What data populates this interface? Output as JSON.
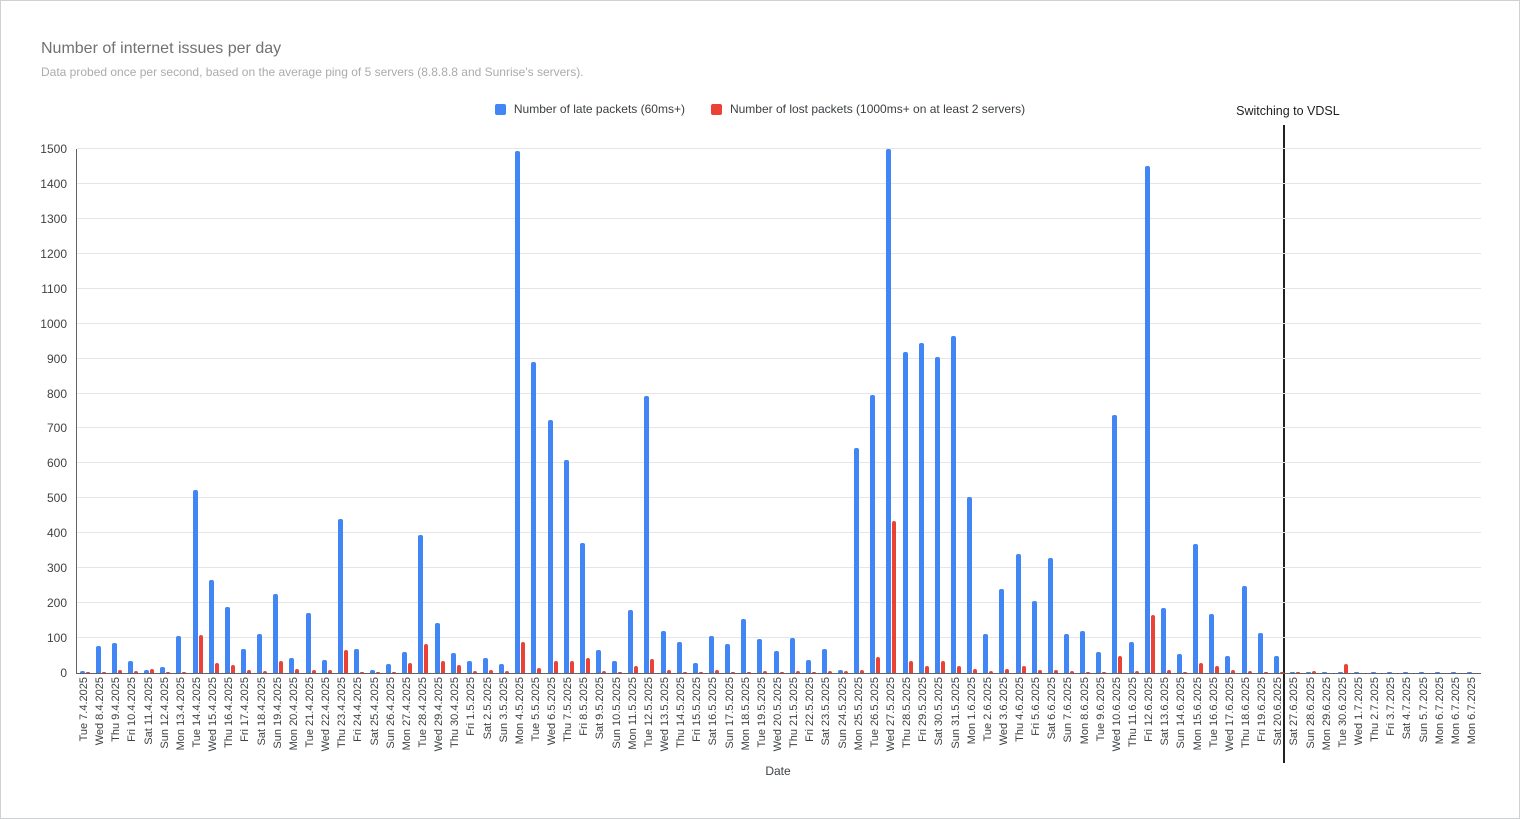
{
  "header": {
    "title": "Number of internet issues per day",
    "subtitle": "Data probed once per second, based on the average ping of 5 servers (8.8.8.8 and Sunrise's servers)."
  },
  "annotation": {
    "label": "Switching to VDSL",
    "between": [
      "Sat 20.6.2025",
      "Sat 27.6.2025"
    ],
    "at_index": 74.85
  },
  "colors": {
    "late_packets": "#4285f4",
    "lost_packets": "#ea4335",
    "gridline": "#e6e6e6",
    "axis": "#5f6368",
    "annotation_line": "#212121"
  },
  "chart_data": {
    "type": "bar",
    "title": "Number of internet issues per day",
    "xlabel": "Date",
    "ylabel": "",
    "ylim": [
      0,
      1500
    ],
    "yticks": [
      0,
      100,
      200,
      300,
      400,
      500,
      600,
      700,
      800,
      900,
      1000,
      1100,
      1200,
      1300,
      1400,
      1500
    ],
    "grid": true,
    "legend_position": "top-center",
    "categories": [
      "Tue 7.4.2025",
      "Wed 8.4.2025",
      "Thu 9.4.2025",
      "Fri 10.4.2025",
      "Sat 11.4.2025",
      "Sun 12.4.2025",
      "Mon 13.4.2025",
      "Tue 14.4.2025",
      "Wed 15.4.2025",
      "Thu 16.4.2025",
      "Fri 17.4.2025",
      "Sat 18.4.2025",
      "Sun 19.4.2025",
      "Mon 20.4.2025",
      "Tue 21.4.2025",
      "Wed 22.4.2025",
      "Thu 23.4.2025",
      "Fri 24.4.2025",
      "Sat 25.4.2025",
      "Sun 26.4.2025",
      "Mon 27.4.2025",
      "Tue 28.4.2025",
      "Wed 29.4.2025",
      "Thu 30.4.2025",
      "Fri 1.5.2025",
      "Sat 2.5.2025",
      "Sun 3.5.2025",
      "Mon 4.5.2025",
      "Tue 5.5.2025",
      "Wed 6.5.2025",
      "Thu 7.5.2025",
      "Fri 8.5.2025",
      "Sat 9.5.2025",
      "Sun 10.5.2025",
      "Mon 11.5.2025",
      "Tue 12.5.2025",
      "Wed 13.5.2025",
      "Thu 14.5.2025",
      "Fri 15.5.2025",
      "Sat 16.5.2025",
      "Sun 17.5.2025",
      "Mon 18.5.2025",
      "Tue 19.5.2025",
      "Wed 20.5.2025",
      "Thu 21.5.2025",
      "Fri 22.5.2025",
      "Sat 23.5.2025",
      "Sun 24.5.2025",
      "Mon 25.5.2025",
      "Tue 26.5.2025",
      "Wed 27.5.2025",
      "Thu 28.5.2025",
      "Fri 29.5.2025",
      "Sat 30.5.2025",
      "Sun 31.5.2025",
      "Mon 1.6.2025",
      "Tue 2.6.2025",
      "Wed 3.6.2025",
      "Thu 4.6.2025",
      "Fri 5.6.2025",
      "Sat 6.6.2025",
      "Sun 7.6.2025",
      "Mon 8.6.2025",
      "Tue 9.6.2025",
      "Wed 10.6.2025",
      "Thu 11.6.2025",
      "Fri 12.6.2025",
      "Sat 13.6.2025",
      "Sun 14.6.2025",
      "Mon 15.6.2025",
      "Tue 16.6.2025",
      "Wed 17.6.2025",
      "Thu 18.6.2025",
      "Fri 19.6.2025",
      "Sat 20.6.2025",
      "Sat 27.6.2025",
      "Sun 28.6.2025",
      "Mon 29.6.2025",
      "Tue 30.6.2025",
      "Wed 1.7.2025",
      "Thu 2.7.2025",
      "Fri 3.7.2025",
      "Sat 4.7.2025",
      "Sun 5.7.2025",
      "Mon 6.7.2025",
      "Mon 6.7.2025",
      "Mon 6.7.2025"
    ],
    "series": [
      {
        "name": "Number of late packets (60ms+)",
        "color": "#4285f4",
        "values": [
          5,
          78,
          85,
          33,
          10,
          18,
          105,
          525,
          265,
          190,
          70,
          113,
          225,
          43,
          172,
          38,
          440,
          70,
          10,
          26,
          60,
          394,
          143,
          57,
          33,
          43,
          27,
          1495,
          890,
          725,
          610,
          371,
          65,
          33,
          181,
          794,
          120,
          88,
          29,
          107,
          84,
          156,
          98,
          63,
          101,
          37,
          69,
          10,
          645,
          795,
          1500,
          920,
          945,
          905,
          965,
          505,
          112,
          240,
          340,
          205,
          330,
          113,
          120,
          60,
          740,
          90,
          1450,
          185,
          55,
          370,
          168,
          50,
          250,
          115,
          50,
          2,
          2,
          2,
          2,
          2,
          2,
          2,
          2,
          2,
          2,
          2,
          1
        ]
      },
      {
        "name": "Number of lost packets (1000ms+ on at least 2 servers)",
        "color": "#ea4335",
        "values": [
          2,
          3,
          8,
          5,
          12,
          3,
          2,
          110,
          30,
          24,
          8,
          5,
          33,
          12,
          8,
          10,
          65,
          3,
          4,
          3,
          28,
          84,
          33,
          24,
          5,
          8,
          5,
          90,
          15,
          35,
          35,
          42,
          6,
          4,
          19,
          40,
          8,
          3,
          2,
          8,
          3,
          4,
          5,
          3,
          5,
          4,
          5,
          5,
          8,
          45,
          435,
          35,
          20,
          35,
          20,
          12,
          5,
          12,
          20,
          8,
          10,
          5,
          4,
          3,
          50,
          5,
          165,
          10,
          3,
          28,
          20,
          8,
          5,
          4,
          3,
          4,
          5,
          0,
          25,
          0,
          0,
          0,
          0,
          0,
          0,
          0,
          0
        ]
      }
    ],
    "annotations": [
      {
        "label": "Switching to VDSL",
        "at_index": 74.85
      }
    ]
  }
}
